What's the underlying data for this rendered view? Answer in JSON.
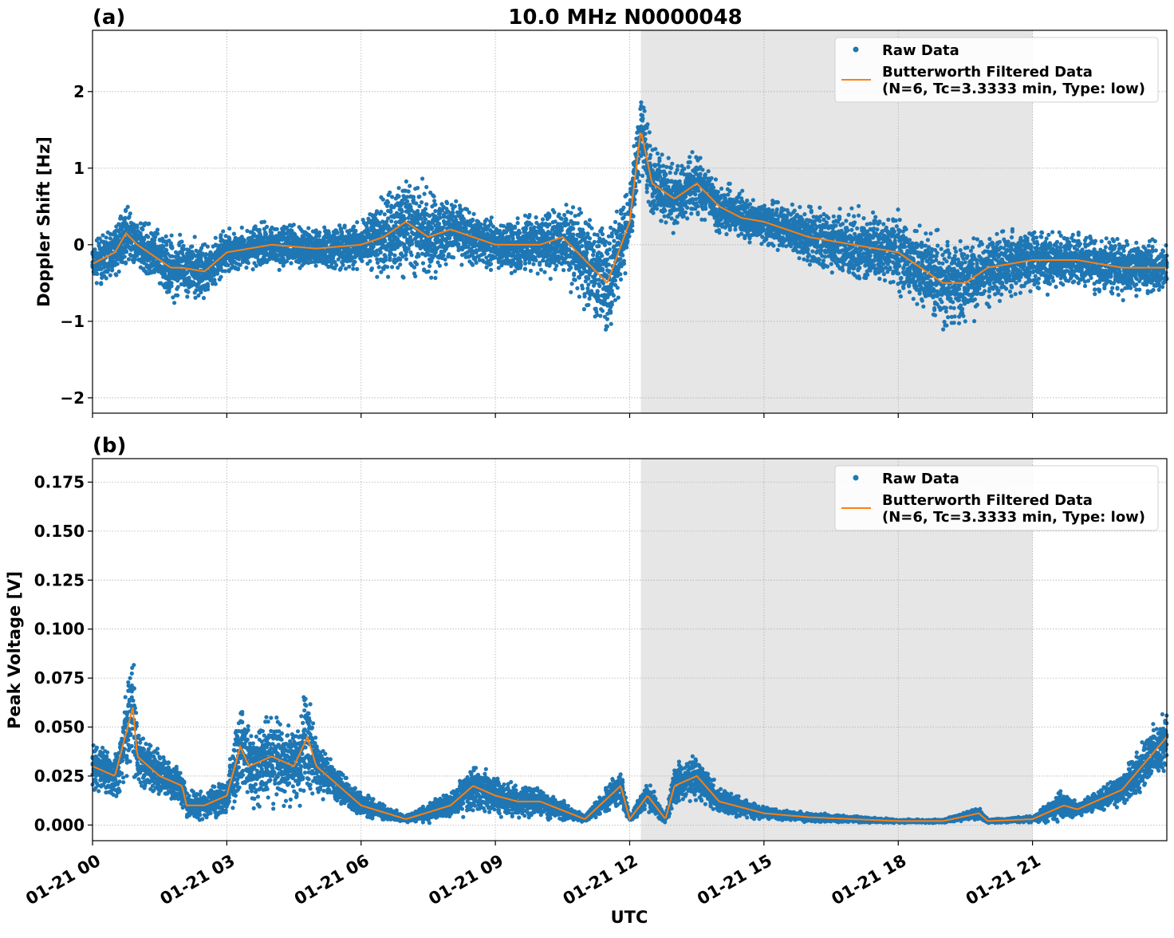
{
  "figure": {
    "title": "10.0 MHz N0000048",
    "xlabel": "UTC",
    "x_ticks": [
      "01-21 00",
      "01-21 03",
      "01-21 06",
      "01-21 09",
      "01-21 12",
      "01-21 15",
      "01-21 18",
      "01-21 21"
    ],
    "x_tick_hours": [
      0,
      3,
      6,
      9,
      12,
      15,
      18,
      21
    ],
    "xlim_hours": [
      0,
      24
    ],
    "shaded_region_hours": [
      12.25,
      21.0
    ],
    "colors": {
      "raw": "#1f77b4",
      "filtered": "#ff7f0e",
      "shade": "#e6e6e6",
      "grid": "#b0b0b0"
    }
  },
  "chart_data": [
    {
      "type": "scatter",
      "panel_label": "(a)",
      "ylabel": "Doppler Shift [Hz]",
      "ylim": [
        -2.2,
        2.8
      ],
      "y_ticks": [
        2,
        1,
        0,
        -1,
        -2
      ],
      "y_tick_labels": [
        "2",
        "1",
        "0",
        "−1",
        "−2"
      ],
      "legend": {
        "position": "top-right",
        "entries": [
          "Raw Data",
          "Butterworth Filtered Data",
          "(N=6, Tc=3.3333 min, Type: low)"
        ]
      },
      "series": [
        {
          "name": "Raw Data",
          "kind": "points",
          "x": [
            0,
            0.5,
            0.75,
            1,
            1.5,
            1.75,
            2,
            2.5,
            3,
            4,
            5,
            6,
            6.5,
            7,
            7.5,
            8,
            9,
            10,
            10.5,
            11,
            11.5,
            12,
            12.25,
            12.5,
            13,
            13.5,
            14,
            14.5,
            15,
            16,
            17,
            18,
            18.5,
            19,
            19.5,
            20,
            21,
            22,
            23,
            24
          ],
          "y": [
            -0.25,
            -0.1,
            0.15,
            0,
            -0.2,
            -0.3,
            -0.3,
            -0.35,
            -0.1,
            0,
            -0.05,
            0,
            0.1,
            0.3,
            0.1,
            0.2,
            0,
            0,
            0.1,
            -0.2,
            -0.5,
            0.3,
            1.5,
            0.8,
            0.6,
            0.8,
            0.5,
            0.35,
            0.3,
            0.1,
            0,
            -0.1,
            -0.3,
            -0.5,
            -0.5,
            -0.3,
            -0.2,
            -0.2,
            -0.3,
            -0.3
          ],
          "spread": [
            0.35,
            0.4,
            0.45,
            0.4,
            0.45,
            0.55,
            0.5,
            0.45,
            0.35,
            0.35,
            0.35,
            0.4,
            0.7,
            0.8,
            0.8,
            0.5,
            0.4,
            0.5,
            0.6,
            0.8,
            0.9,
            0.6,
            0.7,
            0.6,
            0.5,
            0.5,
            0.4,
            0.4,
            0.35,
            0.45,
            0.55,
            0.6,
            0.7,
            0.75,
            0.7,
            0.6,
            0.5,
            0.45,
            0.45,
            0.4
          ]
        },
        {
          "name": "Butterworth Filtered Data",
          "kind": "line",
          "x": [
            0,
            0.5,
            0.75,
            1,
            1.5,
            1.75,
            2,
            2.5,
            3,
            4,
            5,
            6,
            6.5,
            7,
            7.5,
            8,
            9,
            10,
            10.5,
            11,
            11.5,
            12,
            12.25,
            12.5,
            13,
            13.5,
            14,
            14.5,
            15,
            16,
            17,
            18,
            18.5,
            19,
            19.5,
            20,
            21,
            22,
            23,
            24
          ],
          "y": [
            -0.25,
            -0.1,
            0.15,
            0,
            -0.2,
            -0.3,
            -0.3,
            -0.35,
            -0.1,
            0,
            -0.05,
            0,
            0.1,
            0.3,
            0.1,
            0.2,
            0,
            0,
            0.1,
            -0.2,
            -0.5,
            0.3,
            1.5,
            0.8,
            0.6,
            0.8,
            0.5,
            0.35,
            0.3,
            0.1,
            0,
            -0.1,
            -0.3,
            -0.5,
            -0.5,
            -0.3,
            -0.2,
            -0.2,
            -0.3,
            -0.3
          ]
        }
      ]
    },
    {
      "type": "scatter",
      "panel_label": "(b)",
      "ylabel": "Peak Voltage [V]",
      "ylim": [
        -0.008,
        0.187
      ],
      "y_ticks": [
        0.175,
        0.15,
        0.125,
        0.1,
        0.075,
        0.05,
        0.025,
        0.0
      ],
      "y_tick_labels": [
        "0.175",
        "0.150",
        "0.125",
        "0.100",
        "0.075",
        "0.050",
        "0.025",
        "0.000"
      ],
      "legend": {
        "position": "top-right",
        "entries": [
          "Raw Data",
          "Butterworth Filtered Data",
          "(N=6, Tc=3.3333 min, Type: low)"
        ]
      },
      "series": [
        {
          "name": "Raw Data",
          "kind": "points",
          "x": [
            0,
            0.5,
            0.9,
            1,
            1.5,
            2,
            2.1,
            2.5,
            3,
            3.3,
            3.5,
            4,
            4.5,
            4.8,
            5,
            5.5,
            6,
            7,
            8,
            8.5,
            9,
            9.5,
            10,
            11,
            11.8,
            12,
            12.4,
            12.8,
            13,
            13.5,
            14,
            15,
            16,
            17,
            18,
            19,
            19.8,
            20,
            21,
            21.7,
            22,
            23,
            24
          ],
          "y": [
            0.03,
            0.025,
            0.06,
            0.035,
            0.025,
            0.02,
            0.01,
            0.01,
            0.015,
            0.04,
            0.03,
            0.035,
            0.03,
            0.045,
            0.03,
            0.02,
            0.01,
            0.003,
            0.01,
            0.02,
            0.015,
            0.012,
            0.012,
            0.003,
            0.02,
            0.003,
            0.015,
            0.003,
            0.02,
            0.025,
            0.012,
            0.006,
            0.004,
            0.003,
            0.002,
            0.002,
            0.006,
            0.002,
            0.003,
            0.01,
            0.008,
            0.018,
            0.045
          ],
          "spread": [
            0.015,
            0.015,
            0.04,
            0.02,
            0.015,
            0.012,
            0.008,
            0.008,
            0.012,
            0.035,
            0.025,
            0.03,
            0.025,
            0.04,
            0.02,
            0.012,
            0.008,
            0.002,
            0.01,
            0.015,
            0.012,
            0.01,
            0.01,
            0.002,
            0.012,
            0.002,
            0.01,
            0.002,
            0.012,
            0.015,
            0.008,
            0.004,
            0.003,
            0.002,
            0.001,
            0.001,
            0.004,
            0.001,
            0.002,
            0.01,
            0.004,
            0.01,
            0.02
          ]
        },
        {
          "name": "Butterworth Filtered Data",
          "kind": "line",
          "x": [
            0,
            0.5,
            0.9,
            1,
            1.5,
            2,
            2.1,
            2.5,
            3,
            3.3,
            3.5,
            4,
            4.5,
            4.8,
            5,
            5.5,
            6,
            7,
            8,
            8.5,
            9,
            9.5,
            10,
            11,
            11.8,
            12,
            12.4,
            12.8,
            13,
            13.5,
            14,
            15,
            16,
            17,
            18,
            19,
            19.8,
            20,
            21,
            21.7,
            22,
            23,
            24
          ],
          "y": [
            0.03,
            0.025,
            0.06,
            0.035,
            0.025,
            0.02,
            0.01,
            0.01,
            0.015,
            0.04,
            0.03,
            0.035,
            0.03,
            0.045,
            0.03,
            0.02,
            0.01,
            0.003,
            0.01,
            0.02,
            0.015,
            0.012,
            0.012,
            0.003,
            0.02,
            0.003,
            0.015,
            0.003,
            0.02,
            0.025,
            0.012,
            0.006,
            0.004,
            0.003,
            0.002,
            0.002,
            0.006,
            0.002,
            0.003,
            0.01,
            0.008,
            0.018,
            0.045
          ]
        }
      ]
    }
  ]
}
